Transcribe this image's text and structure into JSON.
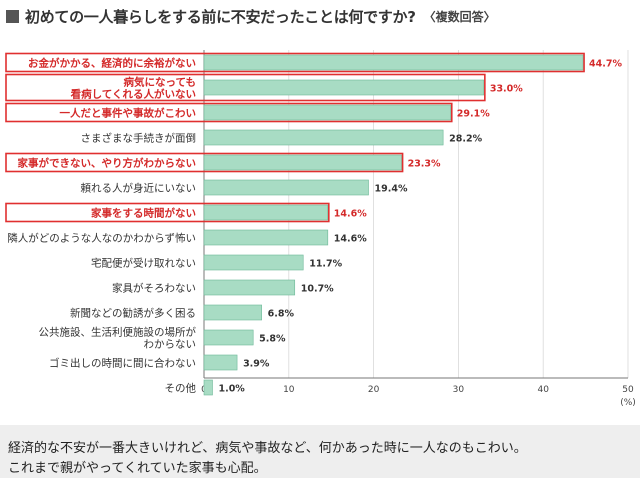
{
  "title": "初めての一人暮らしをする前に不安だったことは何ですか?",
  "subtitle": "〈複数回答〉",
  "caption": [
    "経済的な不安が一番大きいけれど、病気や事故など、何かあった時に一人なのもこわい。",
    "これまで親がやってくれていた家事も心配。"
  ],
  "colors": {
    "bar_fill": "#a8dcc4",
    "bar_stroke": "#6db898",
    "highlight_frame": "#e03030",
    "highlight_text": "#d42a2a",
    "normal_text": "#333333"
  },
  "chart_data": {
    "type": "bar",
    "orientation": "horizontal",
    "xlim": [
      0,
      50
    ],
    "ticks": [
      "0",
      "10",
      "20",
      "30",
      "40",
      "50"
    ],
    "xlabel": "(%)",
    "grid": true,
    "categories": [
      {
        "label": [
          "お金がかかる、経済的に余裕がない"
        ],
        "value": 44.7,
        "value_label": "44.7%",
        "highlight": true
      },
      {
        "label": [
          "病気になっても",
          "看病してくれる人がいない"
        ],
        "value": 33.0,
        "value_label": "33.0%",
        "highlight": true
      },
      {
        "label": [
          "一人だと事件や事故がこわい"
        ],
        "value": 29.1,
        "value_label": "29.1%",
        "highlight": true
      },
      {
        "label": [
          "さまざまな手続きが面倒"
        ],
        "value": 28.2,
        "value_label": "28.2%",
        "highlight": false
      },
      {
        "label": [
          "家事ができない、やり方がわからない"
        ],
        "value": 23.3,
        "value_label": "23.3%",
        "highlight": true
      },
      {
        "label": [
          "頼れる人が身近にいない"
        ],
        "value": 19.4,
        "value_label": "19.4%",
        "highlight": false
      },
      {
        "label": [
          "家事をする時間がない"
        ],
        "value": 14.6,
        "value_label": "14.6%",
        "highlight": true
      },
      {
        "label": [
          "隣人がどのような人なのかわからず怖い"
        ],
        "value": 14.6,
        "value_label": "14.6%",
        "highlight": false
      },
      {
        "label": [
          "宅配便が受け取れない"
        ],
        "value": 11.7,
        "value_label": "11.7%",
        "highlight": false
      },
      {
        "label": [
          "家具がそろわない"
        ],
        "value": 10.7,
        "value_label": "10.7%",
        "highlight": false
      },
      {
        "label": [
          "新聞などの勧誘が多く困る"
        ],
        "value": 6.8,
        "value_label": "6.8%",
        "highlight": false
      },
      {
        "label": [
          "公共施設、生活利便施設の場所が",
          "わからない"
        ],
        "value": 5.8,
        "value_label": "5.8%",
        "highlight": false
      },
      {
        "label": [
          "ゴミ出しの時間に間に合わない"
        ],
        "value": 3.9,
        "value_label": "3.9%",
        "highlight": false
      },
      {
        "label": [
          "その他"
        ],
        "value": 1.0,
        "value_label": "1.0%",
        "highlight": false
      }
    ]
  }
}
